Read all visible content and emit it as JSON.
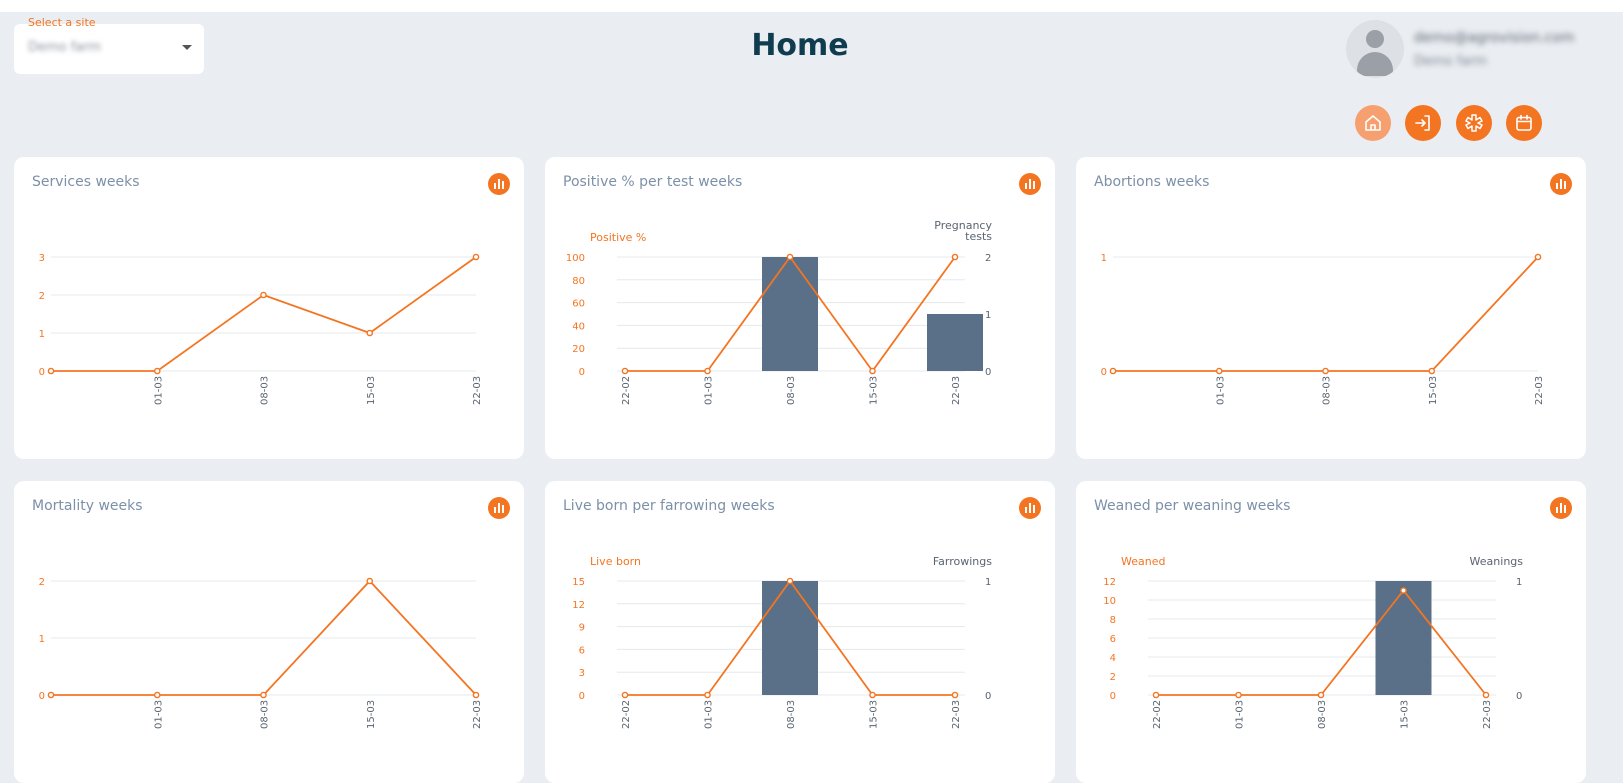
{
  "site_selector": {
    "label": "Select a site",
    "value": "Demo farm"
  },
  "page_title": "Home",
  "user": {
    "email": "demo@agrovision.com",
    "name": "Demo farm"
  },
  "nav_icons": [
    "home-icon",
    "login-icon",
    "medical-icon",
    "calendar-icon"
  ],
  "colors": {
    "accent": "#f47521",
    "bar": "#5a7088",
    "title": "#0f3d4f"
  },
  "cards": [
    {
      "title": "Services weeks",
      "chart_data": {
        "type": "line",
        "categories": [
          "",
          "01-03",
          "08-03",
          "15-03",
          "22-03"
        ],
        "series": [
          {
            "values": [
              0,
              0,
              2,
              1,
              3
            ]
          }
        ],
        "ylim": [
          0,
          3
        ],
        "yticks": [
          0,
          1,
          2,
          3
        ]
      }
    },
    {
      "title": "Positive % per test weeks",
      "chart_data": {
        "type": "bar",
        "categories": [
          "22-02",
          "01-03",
          "08-03",
          "15-03",
          "22-03"
        ],
        "left_label": "Positive %",
        "right_label": "Pregnancy tests",
        "series": [
          {
            "name": "Positive %",
            "type": "line",
            "axis": "left",
            "values": [
              0,
              0,
              100,
              0,
              100
            ]
          },
          {
            "name": "Pregnancy tests",
            "type": "bar",
            "axis": "right",
            "values": [
              0,
              0,
              2,
              0,
              1
            ]
          }
        ],
        "ylim": [
          0,
          100
        ],
        "yticks": [
          0,
          20,
          40,
          60,
          80,
          100
        ],
        "y2lim": [
          0,
          2
        ],
        "y2ticks": [
          0,
          1,
          2
        ]
      }
    },
    {
      "title": "Abortions weeks",
      "chart_data": {
        "type": "line",
        "categories": [
          "",
          "01-03",
          "08-03",
          "15-03",
          "22-03"
        ],
        "series": [
          {
            "values": [
              0,
              0,
              0,
              0,
              1
            ]
          }
        ],
        "ylim": [
          0,
          1
        ],
        "yticks": [
          0,
          1
        ]
      }
    },
    {
      "title": "Mortality weeks",
      "chart_data": {
        "type": "line",
        "categories": [
          "",
          "01-03",
          "08-03",
          "15-03",
          "22-03"
        ],
        "series": [
          {
            "values": [
              0,
              0,
              0,
              2,
              0
            ]
          }
        ],
        "ylim": [
          0,
          2
        ],
        "yticks": [
          0,
          1,
          2
        ]
      }
    },
    {
      "title": "Live born per farrowing weeks",
      "chart_data": {
        "type": "bar",
        "categories": [
          "22-02",
          "01-03",
          "08-03",
          "15-03",
          "22-03"
        ],
        "left_label": "Live born",
        "right_label": "Farrowings",
        "series": [
          {
            "name": "Live born",
            "type": "line",
            "axis": "left",
            "values": [
              0,
              0,
              15,
              0,
              0
            ]
          },
          {
            "name": "Farrowings",
            "type": "bar",
            "axis": "right",
            "values": [
              0,
              0,
              1,
              0,
              0
            ]
          }
        ],
        "ylim": [
          0,
          15
        ],
        "yticks": [
          0,
          3,
          6,
          9,
          12,
          15
        ],
        "y2lim": [
          0,
          1
        ],
        "y2ticks": [
          0,
          1
        ]
      }
    },
    {
      "title": "Weaned per weaning weeks",
      "chart_data": {
        "type": "bar",
        "categories": [
          "22-02",
          "01-03",
          "08-03",
          "15-03",
          "22-03"
        ],
        "left_label": "Weaned",
        "right_label": "Weanings",
        "series": [
          {
            "name": "Weaned",
            "type": "line",
            "axis": "left",
            "values": [
              0,
              0,
              0,
              11,
              0
            ]
          },
          {
            "name": "Weanings",
            "type": "bar",
            "axis": "right",
            "values": [
              0,
              0,
              0,
              1,
              0
            ]
          }
        ],
        "ylim": [
          0,
          12
        ],
        "yticks": [
          0,
          2,
          4,
          6,
          8,
          10,
          12
        ],
        "y2lim": [
          0,
          1
        ],
        "y2ticks": [
          0,
          1
        ]
      }
    }
  ]
}
